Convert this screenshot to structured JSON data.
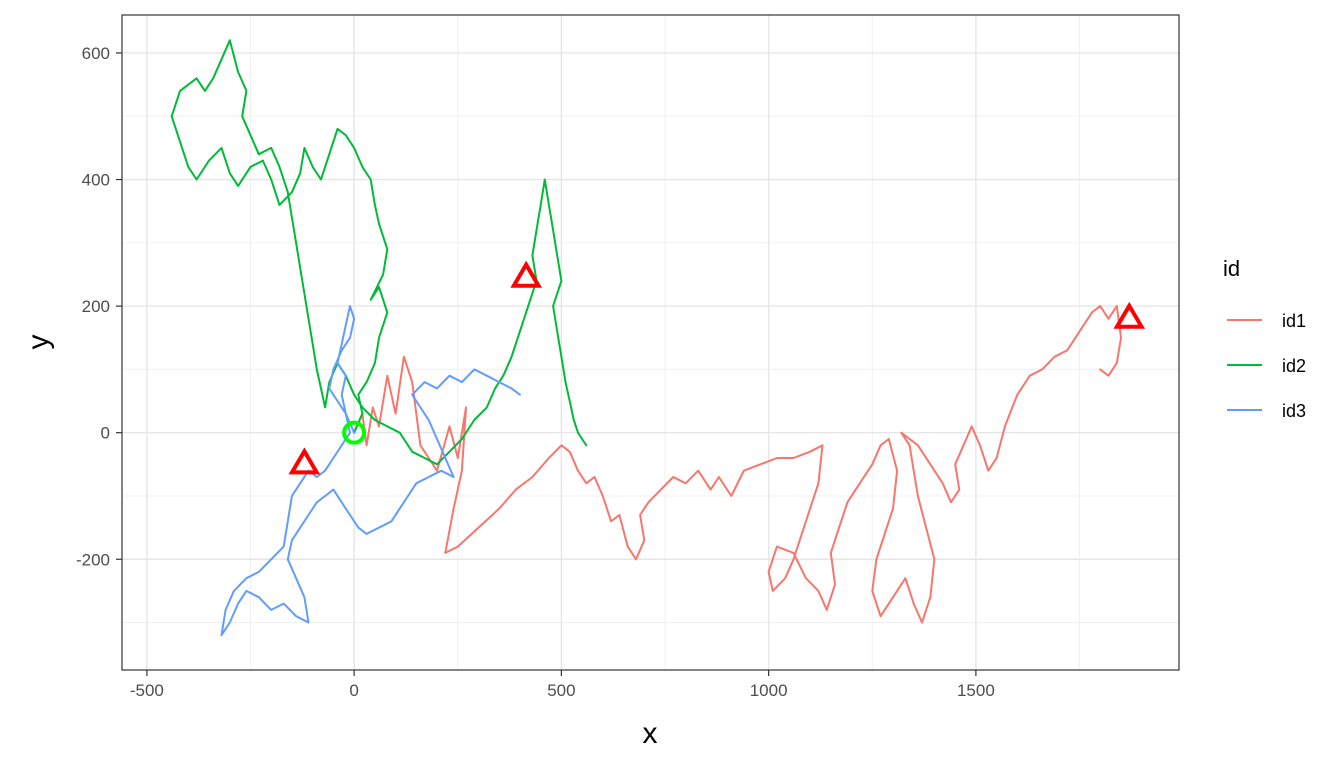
{
  "chart_data": {
    "type": "line",
    "xlabel": "x",
    "ylabel": "y",
    "xlim": [
      -560,
      1990
    ],
    "ylim": [
      -375,
      660
    ],
    "x_ticks": [
      -500,
      0,
      500,
      1000,
      1500
    ],
    "x_tick_labels": [
      "-500",
      "0",
      "500",
      "1000",
      "1500"
    ],
    "y_ticks": [
      -200,
      0,
      200,
      400,
      600
    ],
    "y_tick_labels": [
      "-200",
      "0",
      "200",
      "400",
      "600"
    ],
    "grid": true,
    "legend": {
      "title": "id",
      "position": "right"
    },
    "series": [
      {
        "name": "id1",
        "color": "#F8766D",
        "points": [
          [
            0,
            0
          ],
          [
            20,
            30
          ],
          [
            30,
            -20
          ],
          [
            45,
            40
          ],
          [
            60,
            10
          ],
          [
            80,
            90
          ],
          [
            100,
            30
          ],
          [
            120,
            120
          ],
          [
            140,
            80
          ],
          [
            160,
            -20
          ],
          [
            200,
            -60
          ],
          [
            230,
            10
          ],
          [
            250,
            -40
          ],
          [
            270,
            40
          ],
          [
            260,
            -60
          ],
          [
            240,
            -120
          ],
          [
            220,
            -190
          ],
          [
            250,
            -180
          ],
          [
            300,
            -150
          ],
          [
            350,
            -120
          ],
          [
            390,
            -90
          ],
          [
            430,
            -70
          ],
          [
            470,
            -40
          ],
          [
            500,
            -20
          ],
          [
            520,
            -30
          ],
          [
            540,
            -60
          ],
          [
            560,
            -80
          ],
          [
            580,
            -70
          ],
          [
            600,
            -100
          ],
          [
            620,
            -140
          ],
          [
            640,
            -130
          ],
          [
            660,
            -180
          ],
          [
            680,
            -200
          ],
          [
            700,
            -170
          ],
          [
            690,
            -130
          ],
          [
            710,
            -110
          ],
          [
            740,
            -90
          ],
          [
            770,
            -70
          ],
          [
            800,
            -80
          ],
          [
            830,
            -60
          ],
          [
            860,
            -90
          ],
          [
            880,
            -70
          ],
          [
            910,
            -100
          ],
          [
            940,
            -60
          ],
          [
            980,
            -50
          ],
          [
            1020,
            -40
          ],
          [
            1060,
            -40
          ],
          [
            1100,
            -30
          ],
          [
            1130,
            -20
          ],
          [
            1120,
            -80
          ],
          [
            1100,
            -120
          ],
          [
            1080,
            -160
          ],
          [
            1060,
            -200
          ],
          [
            1040,
            -230
          ],
          [
            1010,
            -250
          ],
          [
            1000,
            -220
          ],
          [
            1020,
            -180
          ],
          [
            1060,
            -190
          ],
          [
            1090,
            -230
          ],
          [
            1120,
            -250
          ],
          [
            1140,
            -280
          ],
          [
            1160,
            -240
          ],
          [
            1150,
            -190
          ],
          [
            1170,
            -150
          ],
          [
            1190,
            -110
          ],
          [
            1220,
            -80
          ],
          [
            1250,
            -50
          ],
          [
            1270,
            -20
          ],
          [
            1290,
            -10
          ],
          [
            1310,
            -60
          ],
          [
            1300,
            -120
          ],
          [
            1280,
            -160
          ],
          [
            1260,
            -200
          ],
          [
            1250,
            -250
          ],
          [
            1270,
            -290
          ],
          [
            1300,
            -260
          ],
          [
            1330,
            -230
          ],
          [
            1350,
            -270
          ],
          [
            1370,
            -300
          ],
          [
            1390,
            -260
          ],
          [
            1400,
            -200
          ],
          [
            1380,
            -150
          ],
          [
            1360,
            -100
          ],
          [
            1350,
            -60
          ],
          [
            1340,
            -20
          ],
          [
            1320,
            0
          ],
          [
            1360,
            -20
          ],
          [
            1390,
            -50
          ],
          [
            1420,
            -80
          ],
          [
            1440,
            -110
          ],
          [
            1460,
            -90
          ],
          [
            1450,
            -50
          ],
          [
            1470,
            -20
          ],
          [
            1490,
            10
          ],
          [
            1510,
            -20
          ],
          [
            1530,
            -60
          ],
          [
            1550,
            -40
          ],
          [
            1570,
            10
          ],
          [
            1600,
            60
          ],
          [
            1630,
            90
          ],
          [
            1660,
            100
          ],
          [
            1690,
            120
          ],
          [
            1720,
            130
          ],
          [
            1740,
            150
          ],
          [
            1760,
            170
          ],
          [
            1780,
            190
          ],
          [
            1800,
            200
          ],
          [
            1820,
            180
          ],
          [
            1840,
            200
          ],
          [
            1850,
            150
          ],
          [
            1840,
            110
          ],
          [
            1820,
            90
          ],
          [
            1800,
            100
          ]
        ]
      },
      {
        "name": "id2",
        "color": "#00BA38",
        "points": [
          [
            0,
            0
          ],
          [
            20,
            30
          ],
          [
            10,
            60
          ],
          [
            30,
            80
          ],
          [
            50,
            110
          ],
          [
            60,
            150
          ],
          [
            80,
            190
          ],
          [
            60,
            230
          ],
          [
            40,
            210
          ],
          [
            70,
            250
          ],
          [
            80,
            290
          ],
          [
            60,
            330
          ],
          [
            50,
            360
          ],
          [
            40,
            400
          ],
          [
            20,
            420
          ],
          [
            0,
            450
          ],
          [
            -20,
            470
          ],
          [
            -40,
            480
          ],
          [
            -60,
            440
          ],
          [
            -80,
            400
          ],
          [
            -100,
            420
          ],
          [
            -120,
            450
          ],
          [
            -130,
            410
          ],
          [
            -150,
            380
          ],
          [
            -180,
            360
          ],
          [
            -200,
            400
          ],
          [
            -220,
            430
          ],
          [
            -250,
            420
          ],
          [
            -280,
            390
          ],
          [
            -300,
            410
          ],
          [
            -320,
            450
          ],
          [
            -350,
            430
          ],
          [
            -380,
            400
          ],
          [
            -400,
            420
          ],
          [
            -420,
            460
          ],
          [
            -440,
            500
          ],
          [
            -420,
            540
          ],
          [
            -380,
            560
          ],
          [
            -360,
            540
          ],
          [
            -340,
            560
          ],
          [
            -320,
            590
          ],
          [
            -300,
            620
          ],
          [
            -280,
            570
          ],
          [
            -260,
            540
          ],
          [
            -270,
            500
          ],
          [
            -250,
            470
          ],
          [
            -230,
            440
          ],
          [
            -200,
            450
          ],
          [
            -180,
            420
          ],
          [
            -160,
            380
          ],
          [
            -150,
            340
          ],
          [
            -140,
            300
          ],
          [
            -130,
            260
          ],
          [
            -120,
            220
          ],
          [
            -110,
            180
          ],
          [
            -100,
            140
          ],
          [
            -90,
            100
          ],
          [
            -80,
            70
          ],
          [
            -70,
            40
          ],
          [
            -60,
            80
          ],
          [
            -40,
            110
          ],
          [
            -20,
            90
          ],
          [
            0,
            60
          ],
          [
            20,
            40
          ],
          [
            50,
            20
          ],
          [
            80,
            10
          ],
          [
            110,
            0
          ],
          [
            140,
            -30
          ],
          [
            170,
            -40
          ],
          [
            200,
            -50
          ],
          [
            230,
            -30
          ],
          [
            260,
            -10
          ],
          [
            290,
            20
          ],
          [
            320,
            40
          ],
          [
            340,
            70
          ],
          [
            360,
            90
          ],
          [
            380,
            120
          ],
          [
            400,
            160
          ],
          [
            420,
            200
          ],
          [
            440,
            240
          ],
          [
            430,
            280
          ],
          [
            440,
            320
          ],
          [
            450,
            360
          ],
          [
            460,
            400
          ],
          [
            470,
            360
          ],
          [
            480,
            320
          ],
          [
            490,
            280
          ],
          [
            500,
            240
          ],
          [
            480,
            200
          ],
          [
            490,
            160
          ],
          [
            500,
            120
          ],
          [
            510,
            80
          ],
          [
            520,
            50
          ],
          [
            530,
            20
          ],
          [
            540,
            0
          ],
          [
            550,
            -10
          ],
          [
            560,
            -20
          ]
        ]
      },
      {
        "name": "id3",
        "color": "#619CFF",
        "points": [
          [
            0,
            0
          ],
          [
            -20,
            30
          ],
          [
            -30,
            60
          ],
          [
            -20,
            90
          ],
          [
            -40,
            110
          ],
          [
            -30,
            140
          ],
          [
            -20,
            170
          ],
          [
            -10,
            200
          ],
          [
            0,
            180
          ],
          [
            -10,
            150
          ],
          [
            -30,
            130
          ],
          [
            -50,
            100
          ],
          [
            -60,
            70
          ],
          [
            -40,
            50
          ],
          [
            -20,
            30
          ],
          [
            -10,
            0
          ],
          [
            -30,
            -20
          ],
          [
            -50,
            -40
          ],
          [
            -70,
            -60
          ],
          [
            -90,
            -70
          ],
          [
            -110,
            -60
          ],
          [
            -130,
            -80
          ],
          [
            -150,
            -100
          ],
          [
            -160,
            -140
          ],
          [
            -170,
            -180
          ],
          [
            -200,
            -200
          ],
          [
            -230,
            -220
          ],
          [
            -260,
            -230
          ],
          [
            -290,
            -250
          ],
          [
            -310,
            -280
          ],
          [
            -320,
            -320
          ],
          [
            -300,
            -300
          ],
          [
            -280,
            -270
          ],
          [
            -260,
            -250
          ],
          [
            -230,
            -260
          ],
          [
            -200,
            -280
          ],
          [
            -170,
            -270
          ],
          [
            -140,
            -290
          ],
          [
            -110,
            -300
          ],
          [
            -120,
            -260
          ],
          [
            -140,
            -230
          ],
          [
            -160,
            -200
          ],
          [
            -150,
            -170
          ],
          [
            -130,
            -150
          ],
          [
            -110,
            -130
          ],
          [
            -90,
            -110
          ],
          [
            -70,
            -100
          ],
          [
            -50,
            -90
          ],
          [
            -30,
            -110
          ],
          [
            -10,
            -130
          ],
          [
            10,
            -150
          ],
          [
            30,
            -160
          ],
          [
            60,
            -150
          ],
          [
            90,
            -140
          ],
          [
            110,
            -120
          ],
          [
            130,
            -100
          ],
          [
            150,
            -80
          ],
          [
            180,
            -70
          ],
          [
            210,
            -60
          ],
          [
            240,
            -70
          ],
          [
            220,
            -40
          ],
          [
            200,
            -10
          ],
          [
            180,
            20
          ],
          [
            160,
            40
          ],
          [
            140,
            60
          ],
          [
            170,
            80
          ],
          [
            200,
            70
          ],
          [
            230,
            90
          ],
          [
            260,
            80
          ],
          [
            290,
            100
          ],
          [
            320,
            90
          ],
          [
            350,
            80
          ],
          [
            380,
            70
          ],
          [
            400,
            60
          ]
        ]
      }
    ],
    "markers": [
      {
        "shape": "triangle",
        "color": "#FF0000",
        "x": 415,
        "y": 245
      },
      {
        "shape": "triangle",
        "color": "#FF0000",
        "x": 1870,
        "y": 180
      },
      {
        "shape": "triangle",
        "color": "#FF0000",
        "x": -120,
        "y": -50
      },
      {
        "shape": "circle",
        "color": "#00FF00",
        "x": 0,
        "y": 0
      }
    ]
  }
}
